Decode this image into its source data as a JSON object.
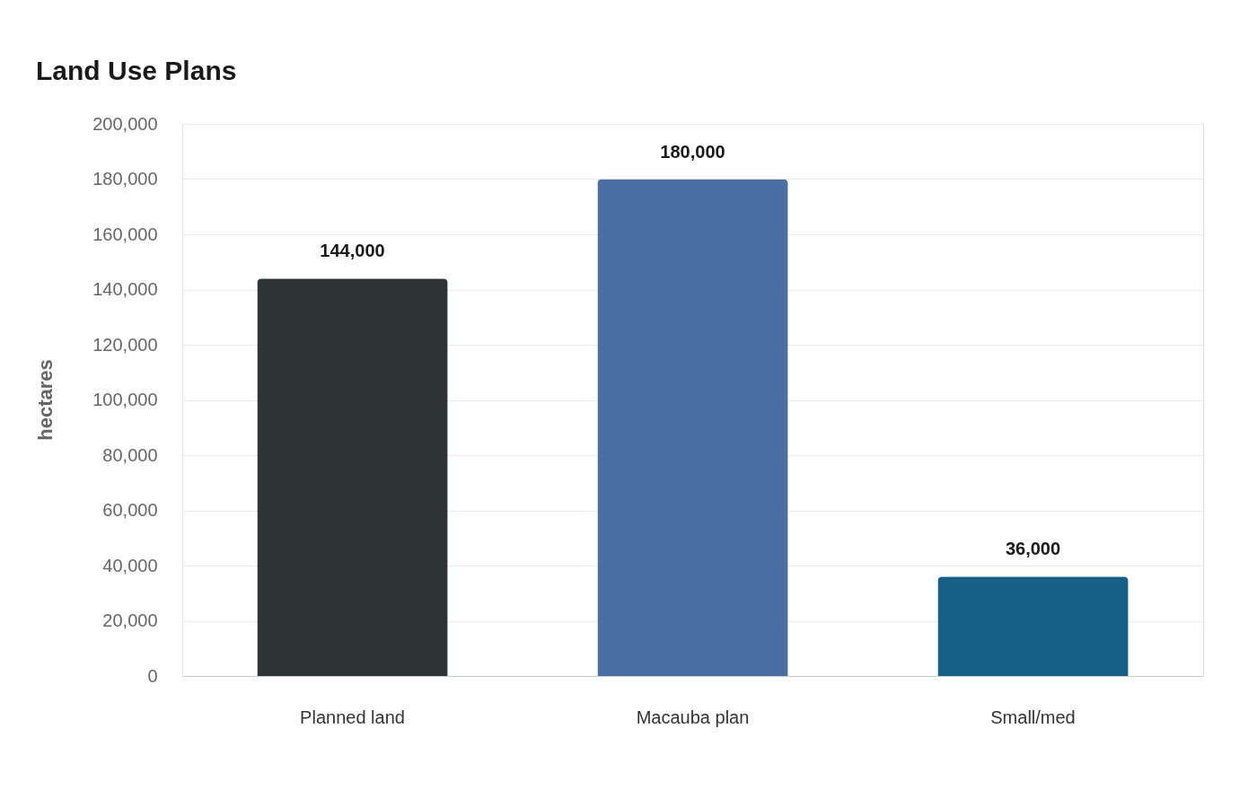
{
  "chart_data": {
    "type": "bar",
    "title": "Land Use Plans",
    "ylabel": "hectares",
    "categories": [
      "Planned land",
      "Macauba plan",
      "Small/med"
    ],
    "values": [
      144000,
      180000,
      36000
    ],
    "colors": [
      "#2d3436",
      "#4a6fa5",
      "#166088"
    ],
    "value_labels": [
      "144,000",
      "180,000",
      "36,000"
    ],
    "ylim": [
      0,
      200000
    ],
    "yticks": [
      0,
      {
        "value": 20000,
        "label": "20,000"
      },
      {
        "value": 40000,
        "label": "40,000"
      },
      {
        "value": 60000,
        "label": "60,000"
      },
      {
        "value": 80000,
        "label": "80,000"
      },
      {
        "value": 100000,
        "label": "100,000"
      },
      {
        "value": 120000,
        "label": "120,000"
      },
      {
        "value": 140000,
        "label": "140,000"
      },
      {
        "value": 160000,
        "label": "160,000"
      },
      {
        "value": 180000,
        "label": "180,000"
      },
      {
        "value": 200000,
        "label": "200,000"
      }
    ],
    "grid": "y",
    "legend": false
  }
}
